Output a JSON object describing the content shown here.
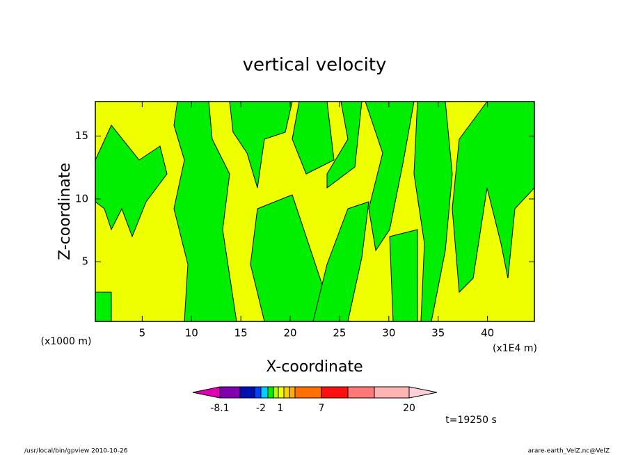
{
  "chart_data": {
    "type": "contour",
    "title": "vertical velocity",
    "x_label": "X-coordinate",
    "y_label": "Z-coordinate",
    "x_unit": "(x1E4 m)",
    "y_unit": "(x1000 m)",
    "xlim": [
      0.25,
      44.75
    ],
    "xticks": [
      5,
      10,
      15,
      20,
      25,
      30,
      35,
      40
    ],
    "ylim": [
      0.25,
      17.75
    ],
    "yticks": [
      5,
      10,
      15
    ],
    "fill_colors": [
      "#eeff00",
      "#00ee00"
    ],
    "colorbar": {
      "colors": [
        "#e000b0",
        "#8000b0",
        "#0010b0",
        "#0040ff",
        "#00d0ff",
        "#00ee00",
        "#b0ff00",
        "#eeff00",
        "#ffd000",
        "#ffb000",
        "#ff7000",
        "#ff1010",
        "#ff7878",
        "#ffb4b4",
        "#ffd0d8"
      ],
      "labels": [
        "-8.1",
        "-2",
        "1",
        "7",
        "20"
      ]
    },
    "time_label": "t=19250 s",
    "footer_left": "/usr/local/bin/gpview   2010-10-26",
    "footer_right": "arare-earth_VelZ.nc@VelZ"
  }
}
